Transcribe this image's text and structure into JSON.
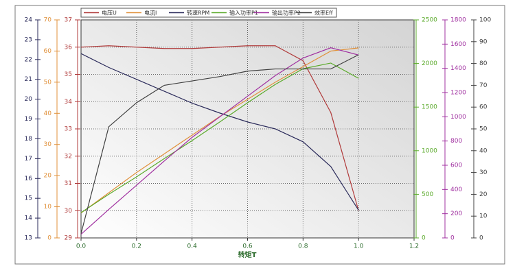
{
  "chart_data": {
    "type": "line",
    "x_label": "转矩T",
    "x": [
      0,
      0.1,
      0.2,
      0.3,
      0.4,
      0.5,
      0.6,
      0.7,
      0.8,
      0.9,
      1.0
    ],
    "xlim": [
      0,
      1.2
    ],
    "xticks": [
      {
        "value": 0,
        "label": "0.0"
      },
      0.2,
      0.4,
      0.6,
      0.8,
      {
        "value": 1,
        "label": "1.0"
      },
      1.2
    ],
    "grid": true,
    "legend": "top",
    "series": [
      {
        "name": "电压U",
        "color": "#b03a3a",
        "ylim": [
          29,
          37
        ],
        "yticks": [
          29,
          30,
          31,
          32,
          33,
          34,
          35,
          36,
          37
        ],
        "values": [
          36.0,
          36.05,
          36.0,
          35.95,
          35.95,
          36.0,
          36.05,
          36.05,
          35.5,
          33.6,
          30.0
        ]
      },
      {
        "name": "电流I",
        "color": "#e0903a",
        "ylim": [
          0,
          70
        ],
        "yticks": [
          0,
          10,
          20,
          30,
          40,
          50,
          60,
          70
        ],
        "values": [
          8,
          14.5,
          21,
          27,
          33,
          39,
          44.5,
          50,
          55,
          60,
          61
        ]
      },
      {
        "name": "转速RPM",
        "color": "#2a2a5a",
        "ylim": [
          13,
          24
        ],
        "yticks": [
          13,
          14,
          15,
          16,
          17,
          18,
          19,
          20,
          21,
          22,
          23,
          24
        ],
        "values": [
          22.3,
          21.6,
          21.0,
          20.4,
          19.8,
          19.3,
          18.85,
          18.5,
          17.85,
          16.6,
          14.4
        ]
      },
      {
        "name": "输入功率P1",
        "color": "#5aaa2a",
        "ylim": [
          0,
          2500
        ],
        "yticks": [
          0,
          500,
          1000,
          1500,
          2000,
          2500
        ],
        "values": [
          290,
          500,
          700,
          910,
          1115,
          1330,
          1550,
          1760,
          1940,
          2005,
          1830
        ]
      },
      {
        "name": "输出功率P2",
        "color": "#a030a0",
        "ylim": [
          0,
          1800
        ],
        "yticks": [
          0,
          200,
          400,
          600,
          800,
          1000,
          1200,
          1400,
          1600,
          1800
        ],
        "values": [
          30,
          235,
          435,
          635,
          830,
          1000,
          1170,
          1340,
          1485,
          1570,
          1510
        ]
      },
      {
        "name": "效率Eff",
        "color": "#404040",
        "ylim": [
          0,
          100
        ],
        "yticks": [
          0,
          10,
          20,
          30,
          40,
          50,
          60,
          70,
          80,
          90,
          100
        ],
        "values": [
          2,
          51,
          62,
          70,
          72,
          74,
          76.5,
          77.5,
          77.5,
          77.5,
          84
        ]
      }
    ]
  }
}
